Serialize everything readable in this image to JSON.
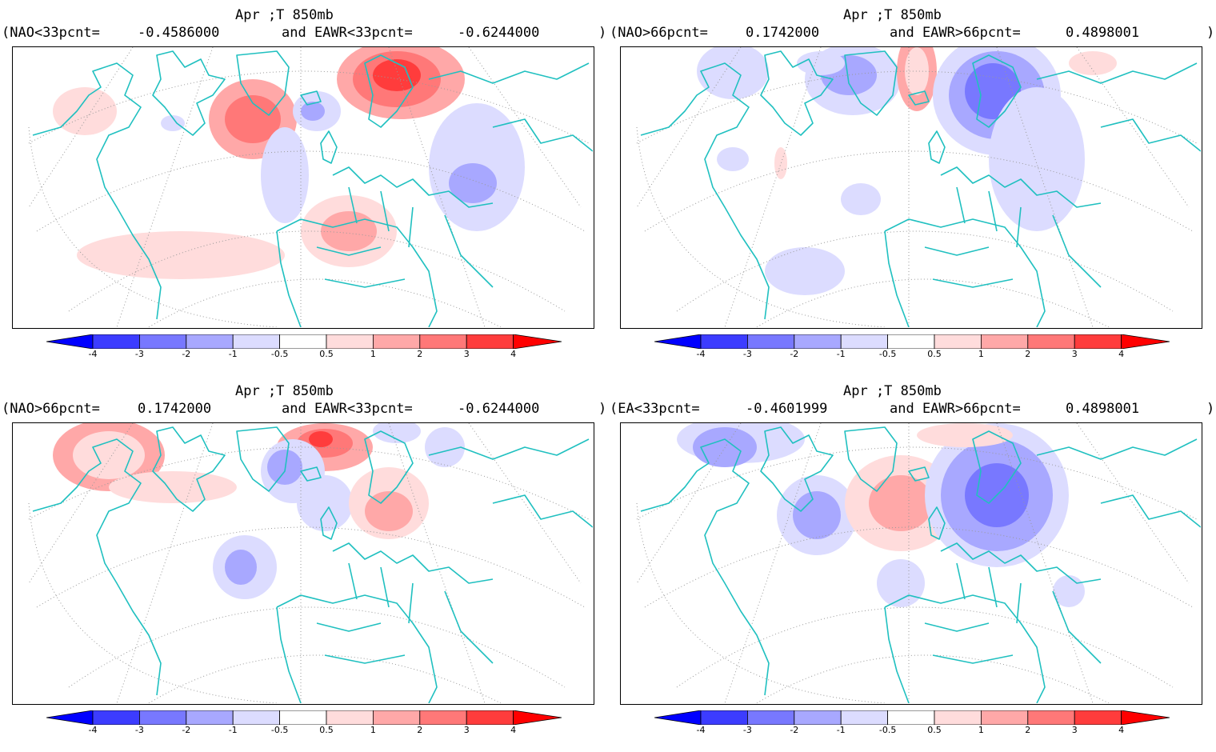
{
  "panels": [
    {
      "title": "Apr ;T 850mb",
      "cond1_label": "(NAO<33pcnt=",
      "cond1_value": "-0.4586000",
      "cond2_label": "and EAWR<33pcnt=",
      "cond2_value": "-0.6244000",
      "close": ")"
    },
    {
      "title": "Apr ;T 850mb",
      "cond1_label": "(NAO>66pcnt=",
      "cond1_value": "0.1742000",
      "cond2_label": "and EAWR>66pcnt=",
      "cond2_value": "0.4898001",
      "close": ")"
    },
    {
      "title": "Apr ;T 850mb",
      "cond1_label": "(NAO>66pcnt=",
      "cond1_value": "0.1742000",
      "cond2_label": "and EAWR<33pcnt=",
      "cond2_value": "-0.6244000",
      "close": ")"
    },
    {
      "title": "Apr ;T 850mb",
      "cond1_label": "(EA<33pcnt=",
      "cond1_value": "-0.4601999",
      "cond2_label": "and EAWR>66pcnt=",
      "cond2_value": "0.4898001",
      "close": ")"
    }
  ],
  "colorbar": {
    "labels": [
      "-4",
      "-3",
      "-2",
      "-1",
      "-0.5",
      "0.5",
      "1",
      "2",
      "3",
      "4"
    ],
    "colors": [
      "#0000ff",
      "#3c3cff",
      "#7878ff",
      "#a8a8ff",
      "#dcdcff",
      "#ffffff",
      "#ffdcdc",
      "#ffa8a8",
      "#ff7878",
      "#ff3c3c",
      "#ff0000"
    ]
  },
  "map_style": {
    "coastline_color": "#20c0c0",
    "graticule_color": "#999999"
  }
}
